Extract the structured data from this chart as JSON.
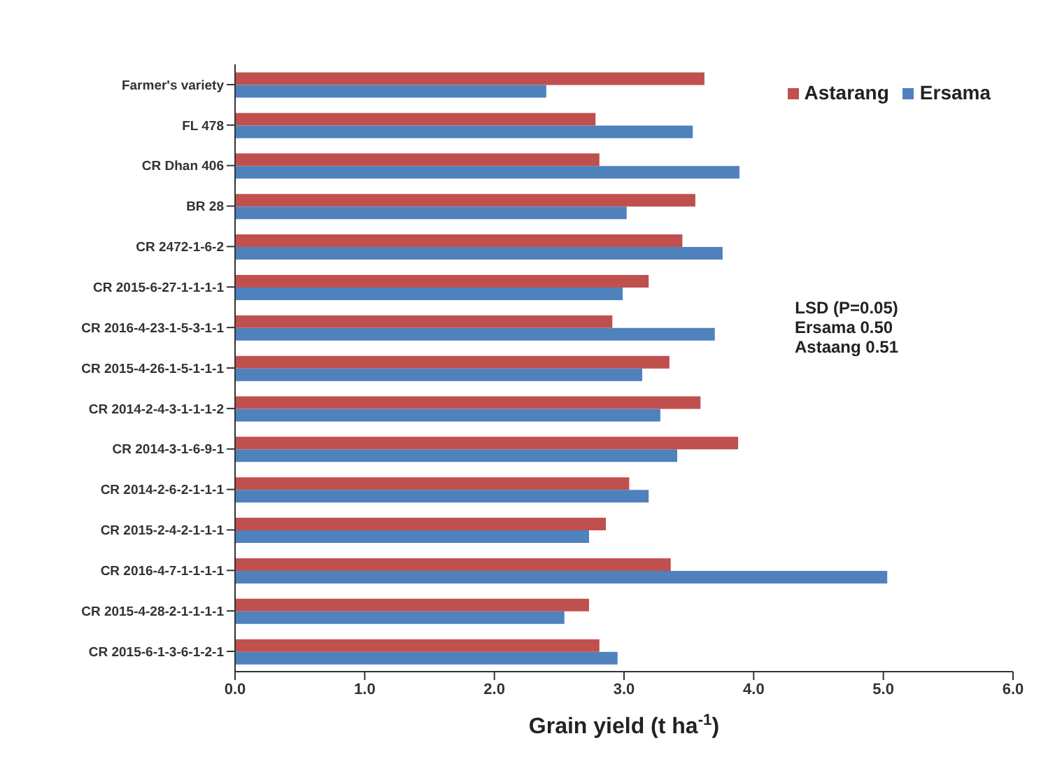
{
  "chart_data": {
    "type": "bar",
    "orientation": "horizontal",
    "xlabel": "Grain yield (t ha$^{-1}$)",
    "categories": [
      "Farmer's variety",
      "FL 478",
      "CR Dhan 406",
      "BR 28",
      "CR 2472-1-6-2",
      "CR 2015-6-27-1-1-1-1",
      "CR 2016-4-23-1-5-3-1-1",
      "CR 2015-4-26-1-5-1-1-1",
      "CR 2014-2-4-3-1-1-1-2",
      "CR 2014-3-1-6-9-1",
      "CR 2014-2-6-2-1-1-1",
      "CR 2015-2-4-2-1-1-1",
      "CR 2016-4-7-1-1-1-1",
      "CR 2015-4-28-2-1-1-1-1",
      "CR 2015-6-1-3-6-1-2-1"
    ],
    "series": [
      {
        "name": "Astarang",
        "color": "#c0504d",
        "values": [
          3.62,
          2.78,
          2.81,
          3.55,
          3.45,
          3.19,
          2.91,
          3.35,
          3.59,
          3.88,
          3.04,
          2.86,
          3.36,
          2.73,
          2.81
        ]
      },
      {
        "name": "Ersama",
        "color": "#4f81bd",
        "values": [
          2.4,
          3.53,
          3.89,
          3.02,
          3.76,
          2.99,
          3.7,
          3.14,
          3.28,
          3.41,
          3.19,
          2.73,
          5.03,
          2.54,
          2.95
        ]
      }
    ],
    "xlim": [
      0,
      6
    ],
    "xticks": [
      {
        "value": 0,
        "label": "0.0"
      },
      {
        "value": 1,
        "label": "1.0"
      },
      {
        "value": 2,
        "label": "2.0"
      },
      {
        "value": 3,
        "label": "3.0"
      },
      {
        "value": 4,
        "label": "4.0"
      },
      {
        "value": 5,
        "label": "5.0"
      },
      {
        "value": 6,
        "label": "6.0"
      }
    ],
    "grid": false,
    "legend": "top right",
    "annotations": [
      "LSD (P=0.05)",
      "Ersama 0.50",
      "Astaang 0.51"
    ]
  }
}
